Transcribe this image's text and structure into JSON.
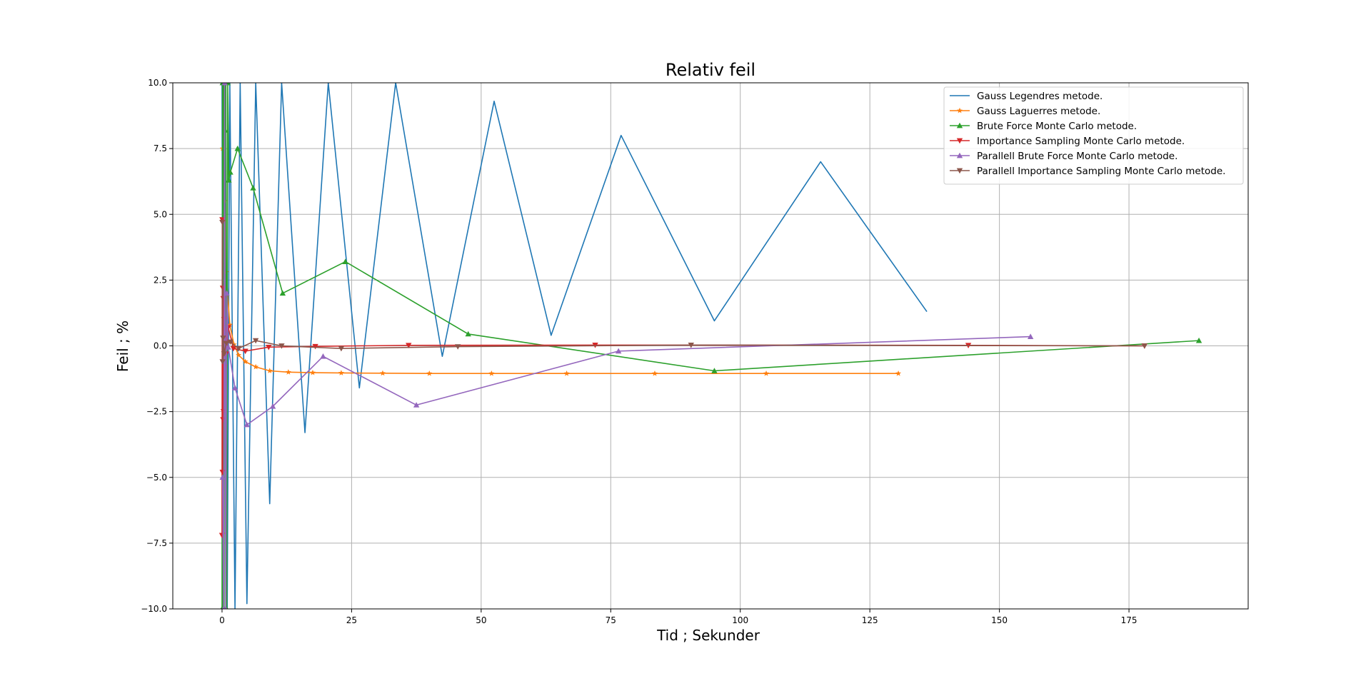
{
  "chart_data": {
    "type": "line",
    "title": "Relativ feil",
    "xlabel": "Tid ; Sekunder",
    "ylabel": "Feil ; %",
    "xlim": [
      -9.5,
      198
    ],
    "ylim": [
      -10,
      10
    ],
    "xticks": [
      0,
      25,
      50,
      75,
      100,
      125,
      150,
      175
    ],
    "xtick_labels": [
      "0",
      "25",
      "50",
      "75",
      "100",
      "125",
      "150",
      "175"
    ],
    "yticks": [
      -10,
      -7.5,
      -5,
      -2.5,
      0,
      2.5,
      5,
      7.5,
      10
    ],
    "ytick_labels": [
      "−10.0",
      "−7.5",
      "−5.0",
      "−2.5",
      "0.0",
      "2.5",
      "5.0",
      "7.5",
      "10.0"
    ],
    "grid": true,
    "legend_position": "top-right",
    "series": [
      {
        "name": "Gauss Legendres metode.",
        "color": "#1f77b4",
        "marker": "none",
        "points": [
          [
            0,
            10
          ],
          [
            0.2,
            -10
          ],
          [
            0.5,
            10
          ],
          [
            1.0,
            -10
          ],
          [
            1.5,
            10
          ],
          [
            2.5,
            -10
          ],
          [
            3.5,
            10
          ],
          [
            4.8,
            -9.8
          ],
          [
            6.5,
            10
          ],
          [
            9.2,
            -6
          ],
          [
            11.5,
            10
          ],
          [
            16,
            -3.3
          ],
          [
            20.5,
            10
          ],
          [
            26.5,
            -1.6
          ],
          [
            33.5,
            10
          ],
          [
            42.5,
            -0.4
          ],
          [
            52.5,
            9.3
          ],
          [
            63.5,
            0.4
          ],
          [
            77,
            8
          ],
          [
            95,
            0.95
          ],
          [
            115.5,
            7
          ],
          [
            136,
            1.3
          ]
        ]
      },
      {
        "name": "Gauss Laguerres metode.",
        "color": "#ff7f0e",
        "marker": "star",
        "points": [
          [
            0.1,
            7.5
          ],
          [
            0.5,
            5.5
          ],
          [
            0.8,
            2.8
          ],
          [
            1.5,
            0.8
          ],
          [
            2.3,
            0.05
          ],
          [
            3.2,
            -0.35
          ],
          [
            4.5,
            -0.6
          ],
          [
            6.5,
            -0.8
          ],
          [
            9.2,
            -0.95
          ],
          [
            12.8,
            -1.0
          ],
          [
            17.5,
            -1.02
          ],
          [
            23,
            -1.03
          ],
          [
            31,
            -1.04
          ],
          [
            40,
            -1.05
          ],
          [
            52,
            -1.05
          ],
          [
            66.5,
            -1.05
          ],
          [
            83.5,
            -1.05
          ],
          [
            105,
            -1.05
          ],
          [
            130.5,
            -1.05
          ]
        ]
      },
      {
        "name": "Brute Force Monte Carlo metode.",
        "color": "#2ca02c",
        "marker": "triangle-up",
        "points": [
          [
            0,
            -10
          ],
          [
            0.1,
            10
          ],
          [
            0.2,
            -10
          ],
          [
            0.3,
            10
          ],
          [
            0.4,
            -10
          ],
          [
            0.5,
            10
          ],
          [
            0.6,
            8.2
          ],
          [
            0.75,
            10
          ],
          [
            0.9,
            -10
          ],
          [
            1.1,
            10
          ],
          [
            1.3,
            6.3
          ],
          [
            1.6,
            6.6
          ],
          [
            3,
            7.5
          ],
          [
            6,
            6
          ],
          [
            11.7,
            2
          ],
          [
            23.8,
            3.2
          ],
          [
            47.5,
            0.45
          ],
          [
            95,
            -0.95
          ],
          [
            188.5,
            0.2
          ]
        ]
      },
      {
        "name": "Importance Sampling Monte Carlo metode.",
        "color": "#d62728",
        "marker": "triangle-down",
        "points": [
          [
            0,
            -7.2
          ],
          [
            0.05,
            4.8
          ],
          [
            0.1,
            -4.8
          ],
          [
            0.15,
            2.2
          ],
          [
            0.2,
            -2.8
          ],
          [
            0.25,
            1.8
          ],
          [
            0.3,
            -2.5
          ],
          [
            0.4,
            1.0
          ],
          [
            0.5,
            -0.8
          ],
          [
            0.6,
            0.6
          ],
          [
            0.8,
            -0.3
          ],
          [
            1.2,
            0.7
          ],
          [
            2.2,
            -0.1
          ],
          [
            4.5,
            -0.2
          ],
          [
            9,
            -0.05
          ],
          [
            18,
            -0.02
          ],
          [
            36,
            0.02
          ],
          [
            72,
            0.03
          ],
          [
            144,
            0.02
          ],
          [
            178,
            0.0
          ]
        ]
      },
      {
        "name": "Parallell Brute Force Monte Carlo metode.",
        "color": "#9467bd",
        "marker": "triangle-up",
        "points": [
          [
            0.1,
            -5
          ],
          [
            0.3,
            -10
          ],
          [
            0.5,
            10
          ],
          [
            0.7,
            -10
          ],
          [
            0.9,
            2
          ],
          [
            1.2,
            -0.05
          ],
          [
            2.5,
            -1.6
          ],
          [
            4.8,
            -3
          ],
          [
            9.8,
            -2.3
          ],
          [
            19.5,
            -0.4
          ],
          [
            37.5,
            -2.25
          ],
          [
            76.5,
            -0.2
          ],
          [
            156,
            0.35
          ]
        ]
      },
      {
        "name": " Parallell Importance Sampling Monte Carlo metode.",
        "color": "#8c564b",
        "marker": "triangle-down",
        "points": [
          [
            0.05,
            4.7
          ],
          [
            0.1,
            -0.6
          ],
          [
            0.2,
            0.3
          ],
          [
            0.4,
            -0.3
          ],
          [
            0.8,
            0.1
          ],
          [
            1.6,
            0.15
          ],
          [
            3.2,
            -0.1
          ],
          [
            6.5,
            0.2
          ],
          [
            11.5,
            0.0
          ],
          [
            23,
            -0.1
          ],
          [
            45.5,
            -0.03
          ],
          [
            90.5,
            0.03
          ],
          [
            178,
            0.0
          ]
        ]
      }
    ]
  }
}
